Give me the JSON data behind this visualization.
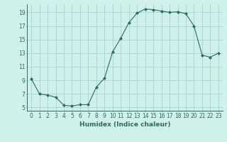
{
  "x": [
    0,
    1,
    2,
    3,
    4,
    5,
    6,
    7,
    8,
    9,
    10,
    11,
    12,
    13,
    14,
    15,
    16,
    17,
    18,
    19,
    20,
    21,
    22,
    23
  ],
  "y": [
    9.2,
    7.0,
    6.8,
    6.5,
    5.3,
    5.2,
    5.4,
    5.4,
    8.0,
    9.3,
    13.2,
    15.2,
    17.5,
    18.9,
    19.5,
    19.4,
    19.2,
    19.0,
    19.1,
    18.8,
    17.0,
    12.7,
    12.4,
    13.0
  ],
  "line_color": "#2e6b5e",
  "marker": "D",
  "marker_size": 2.0,
  "bg_color": "#cff0eb",
  "grid_color": "#9dd8d0",
  "xlabel": "Humidex (Indice chaleur)",
  "xlim": [
    -0.5,
    23.5
  ],
  "ylim": [
    4.5,
    20.2
  ],
  "yticks": [
    5,
    7,
    9,
    11,
    13,
    15,
    17,
    19
  ],
  "xticks": [
    0,
    1,
    2,
    3,
    4,
    5,
    6,
    7,
    8,
    9,
    10,
    11,
    12,
    13,
    14,
    15,
    16,
    17,
    18,
    19,
    20,
    21,
    22,
    23
  ],
  "xtick_labels": [
    "0",
    "1",
    "2",
    "3",
    "4",
    "5",
    "6",
    "7",
    "8",
    "9",
    "10",
    "11",
    "12",
    "13",
    "14",
    "15",
    "16",
    "17",
    "18",
    "19",
    "20",
    "21",
    "22",
    "23"
  ],
  "font_size": 5.5,
  "xlabel_fontsize": 6.5
}
